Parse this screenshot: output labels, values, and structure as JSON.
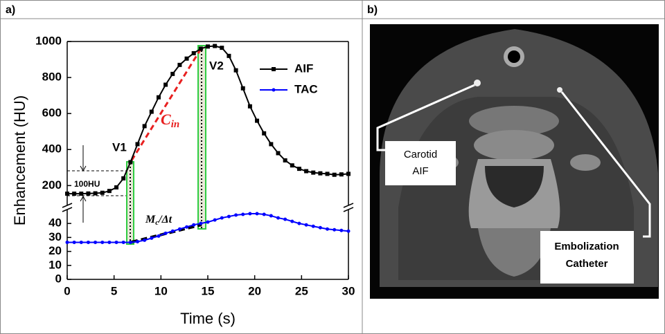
{
  "panels": {
    "a": "a)",
    "b": "b)"
  },
  "chart_data": {
    "type": "line",
    "xlabel": "Time (s)",
    "ylabel": "Enhancement (HU)",
    "x": [
      0,
      0.75,
      1.5,
      2.25,
      3,
      3.75,
      4.5,
      5.25,
      6,
      6.75,
      7.5,
      8.25,
      9,
      9.75,
      10.5,
      11.25,
      12,
      12.75,
      13.5,
      14.25,
      15,
      15.75,
      16.5,
      17.25,
      18,
      18.75,
      19.5,
      20.25,
      21,
      21.75,
      22.5,
      23.25,
      24,
      24.75,
      25.5,
      26.25,
      27,
      27.75,
      28.5,
      29.25,
      30
    ],
    "series": [
      {
        "name": "AIF",
        "color": "#000000",
        "marker": "square",
        "values": [
          155,
          155,
          155,
          156,
          157,
          160,
          170,
          190,
          240,
          330,
          430,
          530,
          610,
          690,
          760,
          820,
          870,
          905,
          935,
          960,
          972,
          975,
          965,
          920,
          840,
          740,
          640,
          560,
          490,
          430,
          380,
          340,
          312,
          293,
          280,
          272,
          268,
          265,
          260,
          262,
          265
        ]
      },
      {
        "name": "TAC",
        "color": "#0000ff",
        "marker": "circle",
        "axis": "y2",
        "values": [
          26.5,
          26.5,
          26.5,
          26.5,
          26.5,
          26.5,
          26.5,
          26.5,
          26.5,
          26.5,
          27,
          28,
          29.5,
          31,
          33,
          34.5,
          36,
          37.5,
          39,
          40,
          41,
          42.5,
          44,
          45,
          46,
          46.5,
          47,
          47,
          46.5,
          45.5,
          44,
          43,
          41.5,
          40,
          39,
          38,
          37,
          36,
          35.5,
          35,
          34.5
        ]
      }
    ],
    "xlim": [
      0,
      30
    ],
    "xticks": [
      0,
      5,
      10,
      15,
      20,
      25,
      30
    ],
    "ylim": [
      90,
      1000
    ],
    "yticks": [
      200,
      400,
      600,
      800,
      1000
    ],
    "y2lim": [
      0,
      48
    ],
    "y2ticks": [
      0,
      10,
      20,
      30,
      40
    ],
    "legend": "upper right",
    "annotations": {
      "v1": "V1",
      "v2": "V2",
      "range": "100HU",
      "slope_in": {
        "base": "C",
        "sub": "in"
      },
      "slope_tac": {
        "base": "M",
        "sub": "c",
        "rest": "/Δt"
      }
    }
  },
  "image": {
    "carotid_label": [
      "Carotid",
      "AIF"
    ],
    "catheter_label": [
      "Embolization",
      "Catheter"
    ]
  }
}
